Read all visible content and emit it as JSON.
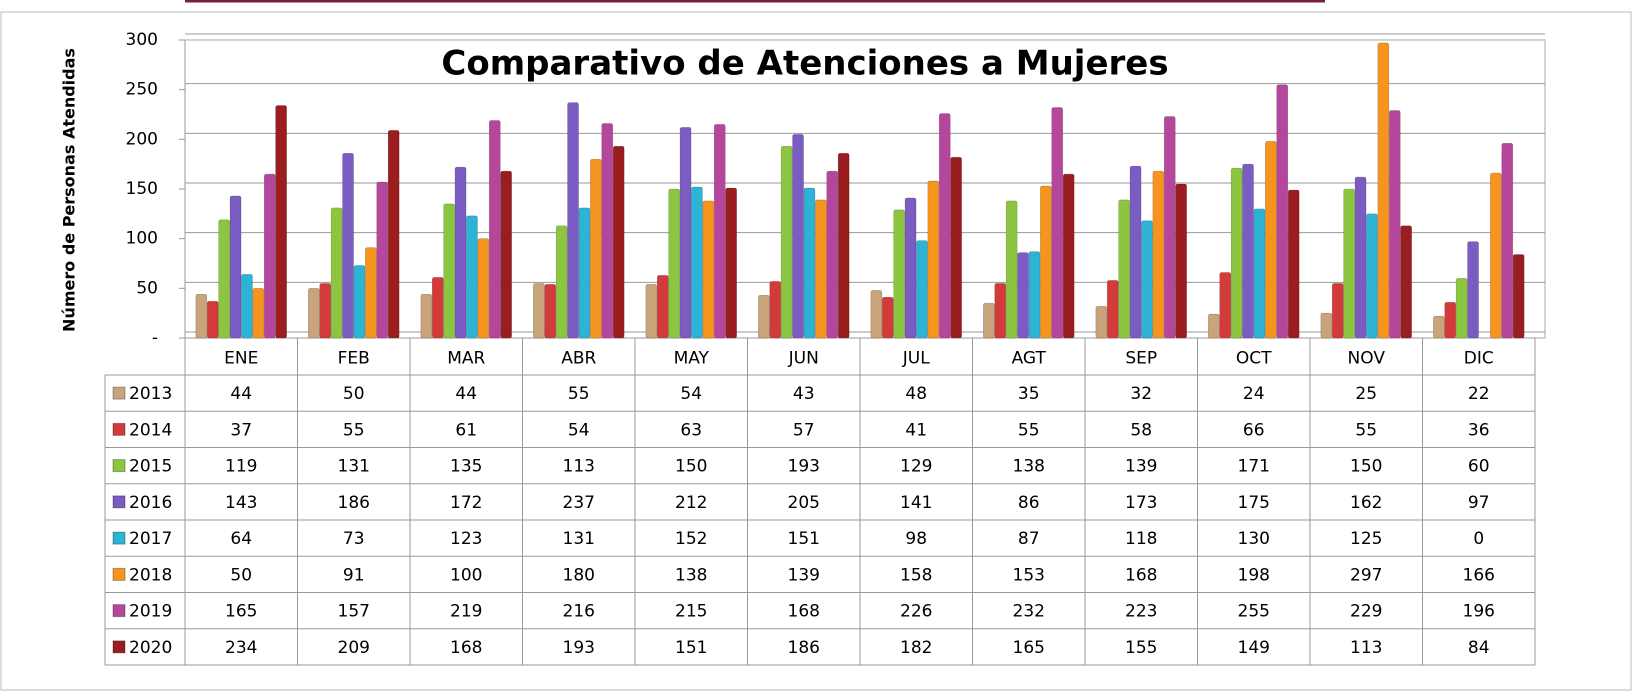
{
  "chart_data": {
    "type": "bar",
    "title": "Comparativo de Atenciones a Mujeres",
    "y_label": "Número de Personas Atendidas",
    "categories": [
      "ENE",
      "FEB",
      "MAR",
      "ABR",
      "MAY",
      "JUN",
      "JUL",
      "AGT",
      "SEP",
      "OCT",
      "NOV",
      "DIC"
    ],
    "series": [
      {
        "name": "2013",
        "color": "#c9a37a",
        "values": [
          44,
          50,
          44,
          55,
          54,
          43,
          48,
          35,
          32,
          24,
          25,
          22
        ]
      },
      {
        "name": "2014",
        "color": "#d33a3a",
        "values": [
          37,
          55,
          61,
          54,
          63,
          57,
          41,
          55,
          58,
          66,
          55,
          36
        ]
      },
      {
        "name": "2015",
        "color": "#8cc640",
        "values": [
          119,
          131,
          135,
          113,
          150,
          193,
          129,
          138,
          139,
          171,
          150,
          60
        ]
      },
      {
        "name": "2016",
        "color": "#7a5cc2",
        "values": [
          143,
          186,
          172,
          237,
          212,
          205,
          141,
          86,
          173,
          175,
          162,
          97
        ]
      },
      {
        "name": "2017",
        "color": "#2db3d6",
        "values": [
          64,
          73,
          123,
          131,
          152,
          151,
          98,
          87,
          118,
          130,
          125,
          0
        ]
      },
      {
        "name": "2018",
        "color": "#f7941d",
        "values": [
          50,
          91,
          100,
          180,
          138,
          139,
          158,
          153,
          168,
          198,
          297,
          166
        ]
      },
      {
        "name": "2019",
        "color": "#b4479b",
        "values": [
          165,
          157,
          219,
          216,
          215,
          168,
          226,
          232,
          223,
          255,
          229,
          196
        ]
      },
      {
        "name": "2020",
        "color": "#9a1d1f",
        "values": [
          234,
          209,
          168,
          193,
          151,
          186,
          182,
          165,
          155,
          149,
          113,
          84
        ]
      }
    ],
    "ylim": [
      0,
      300
    ],
    "yticks": [
      {
        "value": 0,
        "label": "-"
      },
      50,
      100,
      150,
      200,
      250,
      300
    ],
    "grid": true
  }
}
